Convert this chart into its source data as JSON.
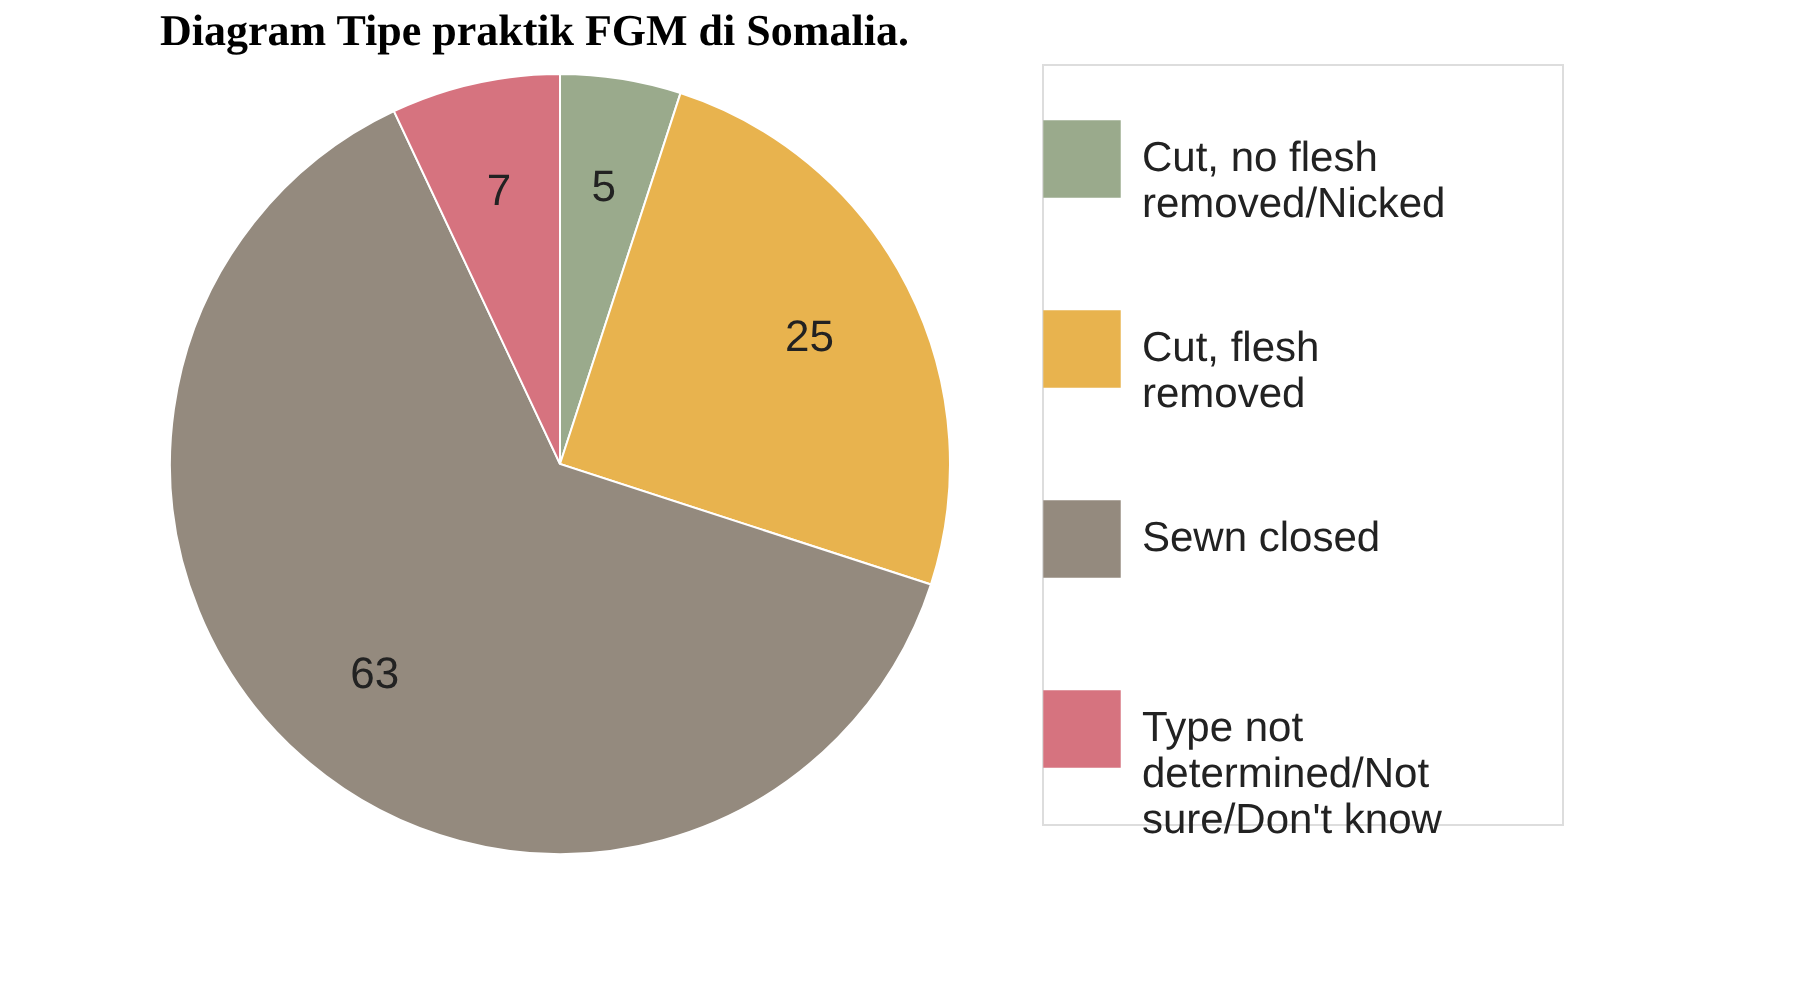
{
  "chart_data": {
    "type": "pie",
    "title": "Diagram Tipe praktik FGM di Somalia.",
    "categories": [
      "Cut, no flesh removed/Nicked",
      "Cut, flesh removed",
      "Sewn closed",
      "Type not determined/Not sure/Don't know"
    ],
    "values": [
      5,
      25,
      63,
      7
    ],
    "colors": [
      "#9aaa8c",
      "#e8b34e",
      "#948a7e",
      "#d6737f"
    ],
    "data_labels": true,
    "legend": "right"
  }
}
